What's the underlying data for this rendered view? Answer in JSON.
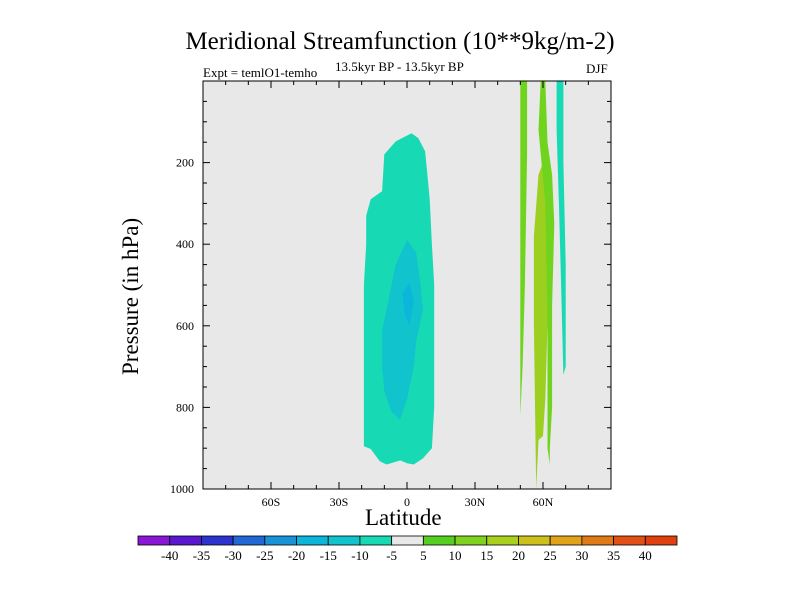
{
  "header": {
    "title": "Meridional Streamfunction (10**9kg/m-2)",
    "left_label": "Expt = temlO1-temho",
    "center_label": "13.5kyr BP - 13.5kyr BP",
    "right_label": "DJF"
  },
  "chart_data": {
    "type": "heatmap",
    "subtype": "filled-contour",
    "title": "Meridional Streamfunction (10**9kg/m-2)",
    "xlabel": "Latitude",
    "ylabel": "Pressure (in hPa)",
    "xlim": [
      -90,
      90
    ],
    "ylim": [
      1000,
      0
    ],
    "x_ticks": [
      {
        "value": -60,
        "label": "60S"
      },
      {
        "value": -30,
        "label": "30S"
      },
      {
        "value": 0,
        "label": "0"
      },
      {
        "value": 30,
        "label": "30N"
      },
      {
        "value": 60,
        "label": "60N"
      }
    ],
    "y_ticks": [
      {
        "value": 200,
        "label": "200"
      },
      {
        "value": 400,
        "label": "400"
      },
      {
        "value": 600,
        "label": "600"
      },
      {
        "value": 800,
        "label": "800"
      },
      {
        "value": 1000,
        "label": "1000"
      }
    ],
    "background_color": "#e8e8e8",
    "regions": [
      {
        "name": "tropical-cell-outer",
        "level": -5,
        "color": "#17d9b3",
        "points": [
          [
            -19,
            1000
          ],
          [
            -19,
            950
          ],
          [
            -19,
            900
          ],
          [
            -19,
            800
          ],
          [
            -19,
            700
          ],
          [
            -19,
            600
          ],
          [
            -19,
            500
          ],
          [
            -18,
            400
          ],
          [
            -18,
            330
          ],
          [
            -16,
            290
          ],
          [
            -11,
            270
          ],
          [
            -10,
            180
          ],
          [
            -5,
            148
          ],
          [
            2,
            128
          ],
          [
            5,
            140
          ],
          [
            8,
            172
          ],
          [
            9,
            230
          ],
          [
            10,
            290
          ],
          [
            11,
            400
          ],
          [
            12,
            500
          ],
          [
            12,
            600
          ],
          [
            12,
            700
          ],
          [
            12,
            800
          ],
          [
            11,
            900
          ],
          [
            7,
            925
          ],
          [
            3,
            940
          ],
          [
            0,
            937
          ],
          [
            -3,
            930
          ],
          [
            -6,
            935
          ],
          [
            -9,
            940
          ],
          [
            -12,
            932
          ],
          [
            -16,
            902
          ],
          [
            -19,
            895
          ]
        ]
      },
      {
        "name": "tropical-cell-inner",
        "level": -10,
        "color": "#11c3cc",
        "points": [
          [
            -11,
            610
          ],
          [
            -9,
            560
          ],
          [
            -5,
            450
          ],
          [
            0,
            390
          ],
          [
            4,
            420
          ],
          [
            6,
            500
          ],
          [
            7,
            560
          ],
          [
            4,
            640
          ],
          [
            3,
            700
          ],
          [
            0,
            780
          ],
          [
            -3,
            830
          ],
          [
            -7,
            810
          ],
          [
            -10,
            760
          ],
          [
            -11,
            700
          ]
        ]
      },
      {
        "name": "tropical-cell-core",
        "level": -15,
        "color": "#0cb5da",
        "points": [
          [
            -2,
            520
          ],
          [
            1,
            495
          ],
          [
            3,
            540
          ],
          [
            1,
            600
          ],
          [
            -1,
            570
          ]
        ]
      },
      {
        "name": "polar-band-a",
        "level": 10,
        "color": "#70d41f",
        "points": [
          [
            50,
            1000
          ],
          [
            50,
            0
          ],
          [
            53,
            0
          ],
          [
            53,
            180
          ],
          [
            52,
            500
          ],
          [
            51,
            700
          ],
          [
            50,
            820
          ]
        ]
      },
      {
        "name": "polar-band-b",
        "level": 15,
        "color": "#9ccf20",
        "points": [
          [
            57,
            1000
          ],
          [
            56,
            600
          ],
          [
            56,
            380
          ],
          [
            58,
            230
          ],
          [
            60,
            200
          ],
          [
            61,
            270
          ],
          [
            62,
            430
          ],
          [
            62,
            600
          ],
          [
            61,
            780
          ],
          [
            60,
            870
          ],
          [
            58,
            880
          ]
        ]
      },
      {
        "name": "polar-band-c",
        "level": 10,
        "color": "#70d41f",
        "points": [
          [
            58,
            120
          ],
          [
            59,
            0
          ],
          [
            61,
            0
          ],
          [
            62,
            150
          ],
          [
            64,
            230
          ],
          [
            65,
            350
          ],
          [
            64,
            550
          ],
          [
            64,
            800
          ],
          [
            63,
            900
          ],
          [
            63,
            940
          ],
          [
            62,
            900
          ],
          [
            62,
            600
          ],
          [
            61,
            300
          ]
        ]
      },
      {
        "name": "polar-band-d",
        "level": -5,
        "color": "#17d9b3",
        "points": [
          [
            66,
            0
          ],
          [
            69,
            0
          ],
          [
            69,
            200
          ],
          [
            70,
            450
          ],
          [
            70,
            700
          ],
          [
            69,
            720
          ],
          [
            68,
            500
          ],
          [
            67,
            300
          ],
          [
            66,
            120
          ]
        ]
      }
    ],
    "colorbar": {
      "levels": [
        -40,
        -35,
        -30,
        -25,
        -20,
        -15,
        -10,
        -5,
        5,
        10,
        15,
        20,
        25,
        30,
        35,
        40
      ],
      "colors": [
        "#8a16d8",
        "#5b16cf",
        "#2c33cf",
        "#2167d6",
        "#1893d8",
        "#0cb5da",
        "#11c3cc",
        "#17d9b3",
        "#e8e8e8",
        "#54cf20",
        "#7fd31f",
        "#a9d01d",
        "#cec01b",
        "#e3a319",
        "#e07a17",
        "#e35016",
        "#e03f10"
      ]
    }
  }
}
